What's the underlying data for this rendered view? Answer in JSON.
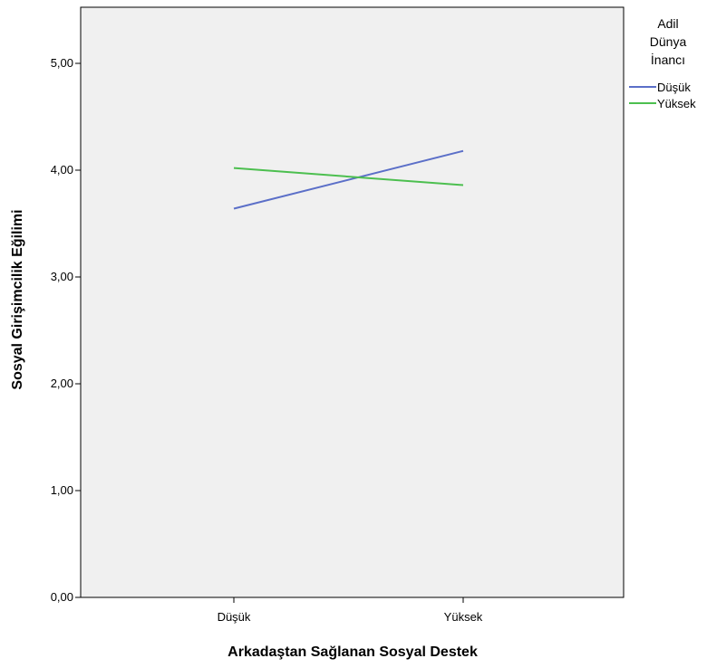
{
  "chart_data": {
    "type": "line",
    "title": "",
    "xlabel": "Arkadaştan Sağlanan Sosyal Destek",
    "ylabel": "Sosyal Girişimcilik Eğilimi",
    "categories": [
      "Düşük",
      "Yüksek"
    ],
    "ylim": [
      0,
      5.5
    ],
    "y_ticks": [
      {
        "value": 0,
        "label": "0,00"
      },
      {
        "value": 1,
        "label": "1,00"
      },
      {
        "value": 2,
        "label": "2,00"
      },
      {
        "value": 3,
        "label": "3,00"
      },
      {
        "value": 4,
        "label": "4,00"
      },
      {
        "value": 5,
        "label": "5,00"
      }
    ],
    "grid": false,
    "legend": {
      "title_lines": [
        "Adil",
        "Dünya",
        "İnancı"
      ],
      "placement": "right"
    },
    "series": [
      {
        "name": "Düşük",
        "values": [
          3.64,
          4.18
        ],
        "color": "#5b6fc8"
      },
      {
        "name": "Yüksek",
        "values": [
          4.02,
          3.86
        ],
        "color": "#4cbf4f"
      }
    ],
    "plot_background": "#f0f0f0"
  }
}
